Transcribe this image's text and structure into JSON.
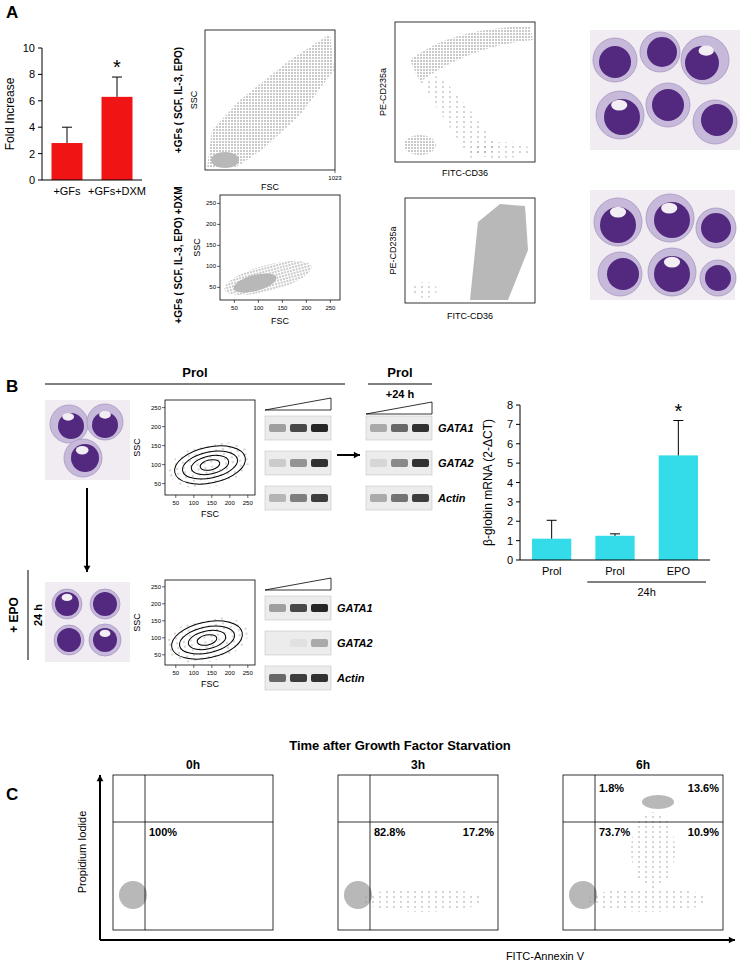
{
  "chart_data": [
    {
      "type": "bar",
      "y_label": "Fold Increase",
      "categories": [
        "+GFs",
        "+GFs+DXM"
      ],
      "values": [
        2.8,
        6.3
      ],
      "errors": [
        1.2,
        1.5
      ],
      "significance": [
        null,
        "*"
      ],
      "color": "#f01414",
      "ylim": [
        0,
        10
      ],
      "yticks": [
        0,
        2,
        4,
        6,
        8,
        10
      ]
    },
    {
      "type": "bar",
      "y_label": "β-globin mRNA (2-ΔCT)",
      "categories": [
        "Prol",
        "Prol",
        "EPO"
      ],
      "values": [
        1.1,
        1.25,
        5.4
      ],
      "errors": [
        0.95,
        0.1,
        1.8
      ],
      "significance": [
        null,
        null,
        "*"
      ],
      "group": [
        null,
        "24h",
        "24h"
      ],
      "color": "#33dce8",
      "ylim": [
        0,
        8
      ],
      "yticks": [
        0,
        1,
        2,
        3,
        4,
        5,
        6,
        7,
        8
      ]
    }
  ],
  "figure": {
    "panel_letters": [
      "A",
      "B",
      "C"
    ],
    "panel_a": {
      "rows": [
        {
          "label": "+GFs ( SCF, IL-3, EPO)",
          "scatter": {
            "x_label": "FSC",
            "y_label": "SSC",
            "xlim": [
              0,
              1023
            ],
            "xticks": [
              1023
            ]
          },
          "markers": {
            "x_label": "FITC-CD36",
            "y_label": "PE-CD235a"
          }
        },
        {
          "label": "+GFs ( SCF, IL-3, EPO) +DXM",
          "scatter": {
            "x_label": "FSC",
            "y_label": "SSC",
            "xlim": [
              20,
              270
            ],
            "xticks": [
              50,
              100,
              150,
              200,
              250
            ],
            "ylim": [
              20,
              270
            ],
            "yticks": [
              50,
              100,
              150,
              200,
              250
            ]
          },
          "markers": {
            "x_label": "FITC-CD36",
            "y_label": "PE-CD235a"
          }
        }
      ]
    },
    "panel_b": {
      "top_label": "Prol",
      "condition_label": "+ EPO",
      "time_label": "24 h",
      "scatter": {
        "x_label": "FSC",
        "y_label": "SSC",
        "xlim": [
          20,
          270
        ],
        "xticks": [
          50,
          100,
          150,
          200,
          250
        ],
        "ylim": [
          20,
          270
        ],
        "yticks": [
          50,
          100,
          150,
          200,
          250
        ]
      },
      "genes": [
        "GATA1",
        "GATA2",
        "Actin"
      ],
      "right_gel_labels": [
        "Prol",
        "+24 h"
      ]
    },
    "panel_c": {
      "title": "Time after Growth Factor Starvation",
      "y_label": "Propidium Iodide",
      "x_label": "FITC-Annexin V",
      "plots": [
        {
          "time": "0h",
          "ll": "100%"
        },
        {
          "time": "3h",
          "ll": "82.8%",
          "lr": "17.2%"
        },
        {
          "time": "6h",
          "ul": "1.8%",
          "ur": "13.6%",
          "ll": "73.7%",
          "lr": "10.9%"
        }
      ]
    }
  }
}
